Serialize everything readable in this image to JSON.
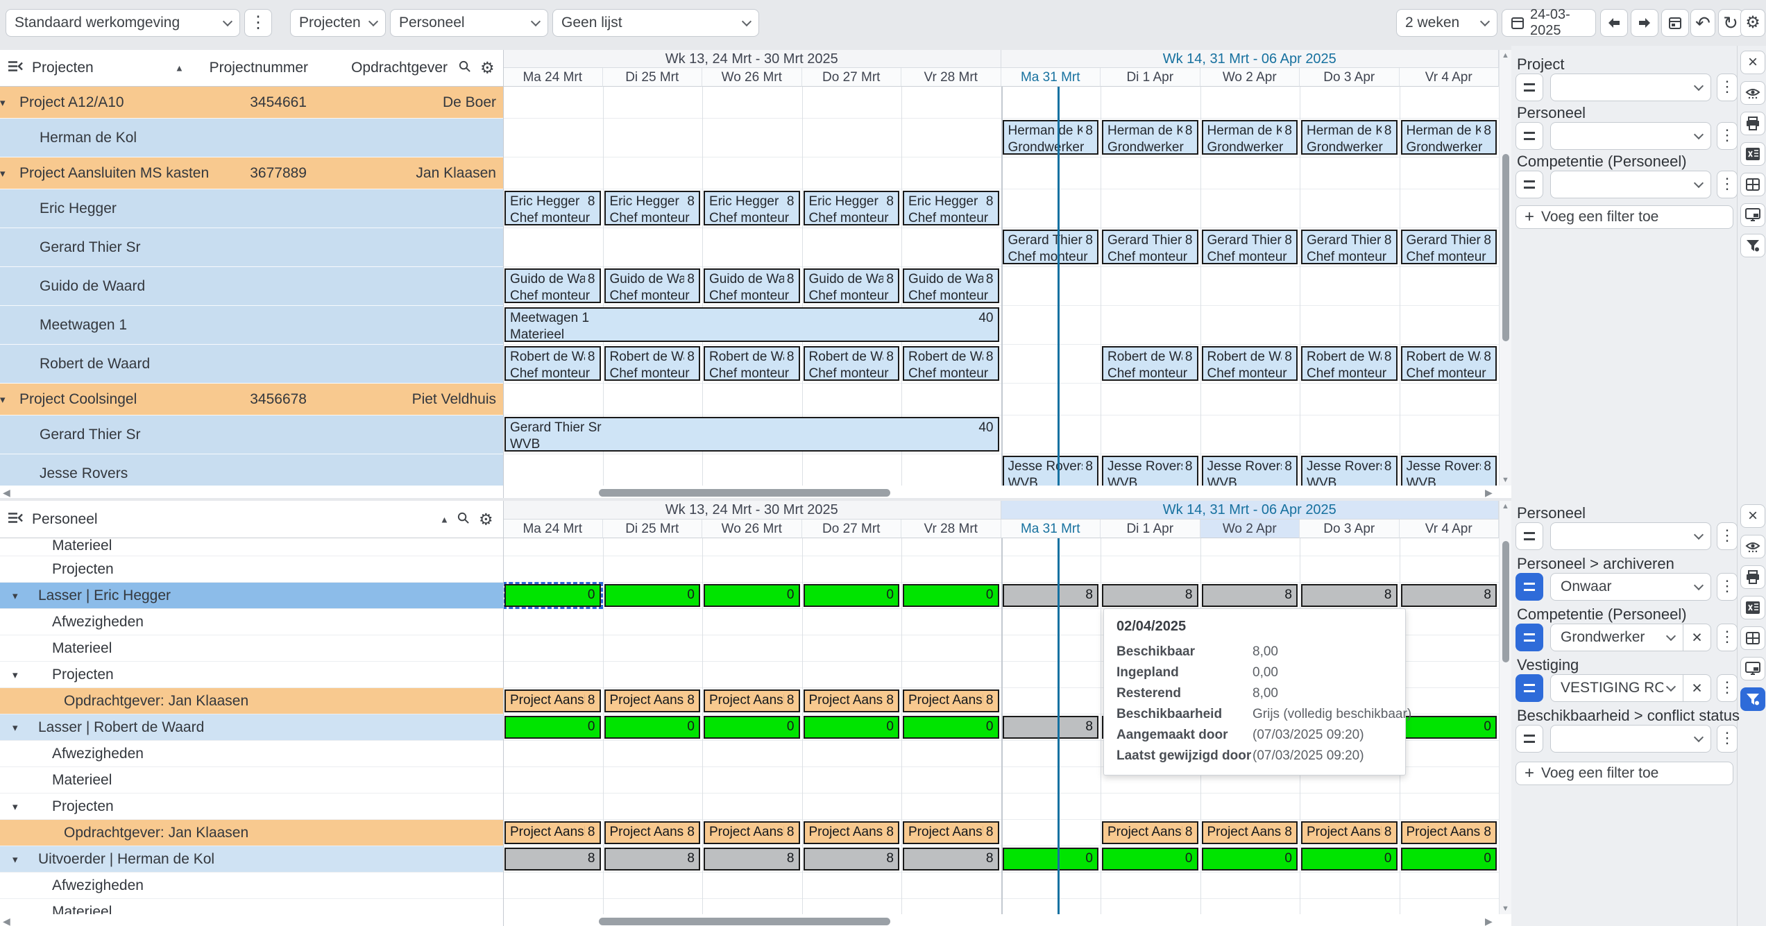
{
  "toolbar": {
    "workspace": "Standaard werkomgeving",
    "view_projects": "Projecten",
    "view_personnel": "Personeel",
    "list": "Geen lijst",
    "period": "2 weken",
    "date": "24-03-2025"
  },
  "timeline": {
    "week1": "Wk 13, 24 Mrt - 30 Mrt 2025",
    "week2": "Wk 14, 31 Mrt - 06 Apr 2025",
    "days_week1": [
      "Ma 24 Mrt",
      "Di 25 Mrt",
      "Wo 26 Mrt",
      "Do 27 Mrt",
      "Vr 28 Mrt"
    ],
    "days_week2": [
      "Ma 31 Mrt",
      "Di 1 Apr",
      "Wo 2 Apr",
      "Do 3 Apr",
      "Vr 4 Apr"
    ],
    "current_day": "Ma 31 Mrt",
    "hovered_day": "Wo 2 Apr"
  },
  "projects_section": {
    "title": "Projecten",
    "columns": {
      "projectnummer": "Projectnummer",
      "opdrachtgever": "Opdrachtgever"
    },
    "rows": [
      {
        "type": "project",
        "label": "Project A12/A10",
        "number": "3454661",
        "client": "De Boer",
        "cells": []
      },
      {
        "type": "resource",
        "label": "Herman de Kol",
        "cells": [
          {
            "cols": "5-9",
            "kind": "plan",
            "name": "Herman de Kol",
            "hours": "8",
            "role": "Grondwerker"
          }
        ]
      },
      {
        "type": "project",
        "label": "Project Aansluiten MS kasten",
        "number": "3677889",
        "client": "Jan Klaasen",
        "cells": []
      },
      {
        "type": "resource",
        "label": "Eric Hegger",
        "cells": [
          {
            "cols": "0-4",
            "kind": "plan",
            "name": "Eric Hegger",
            "hours": "8",
            "role": "Chef monteur"
          }
        ]
      },
      {
        "type": "resource",
        "label": "Gerard Thier Sr",
        "cells": [
          {
            "cols": "5-9",
            "kind": "plan",
            "name": "Gerard Thier Sr",
            "hours": "8",
            "role": "Chef monteur"
          }
        ]
      },
      {
        "type": "resource",
        "label": "Guido de Waard",
        "cells": [
          {
            "cols": "0-4",
            "kind": "plan",
            "name": "Guido de Waard",
            "hours": "8",
            "role": "Chef monteur"
          }
        ]
      },
      {
        "type": "resource",
        "label": "Meetwagen 1",
        "cells": [
          {
            "cols": "0-4",
            "kind": "bar",
            "name": "Meetwagen 1",
            "role": "Materieel",
            "value": "40"
          }
        ]
      },
      {
        "type": "resource",
        "label": "Robert de Waard",
        "cells": [
          {
            "cols": "0-4",
            "kind": "plan",
            "name": "Robert de Waard",
            "hours": "8",
            "role": "Chef monteur"
          },
          {
            "cols": "6-9",
            "kind": "plan",
            "name": "Robert de Waard",
            "hours": "8",
            "role": "Chef monteur"
          }
        ]
      },
      {
        "type": "project",
        "label": "Project Coolsingel",
        "number": "3456678",
        "client": "Piet Veldhuis",
        "cells": []
      },
      {
        "type": "resource",
        "label": "Gerard Thier Sr",
        "cells": [
          {
            "cols": "0-4",
            "kind": "bar",
            "name": "Gerard Thier Sr",
            "role": "WVB",
            "value": "40"
          }
        ]
      },
      {
        "type": "resource",
        "label": "Jesse Rovers",
        "cells": [
          {
            "cols": "5-9",
            "kind": "plan",
            "name": "Jesse Rovers",
            "hours": "8",
            "role": "WVB"
          }
        ]
      }
    ]
  },
  "personnel_section": {
    "title": "Personeel",
    "rows": [
      {
        "label": "Materieel",
        "indent": 2,
        "clipped": true,
        "cells": []
      },
      {
        "label": "Projecten",
        "indent": 2,
        "cells": []
      },
      {
        "label": "Lasser | Eric Hegger",
        "indent": 1,
        "arrow": true,
        "bg": "selected",
        "cells": [
          {
            "cols": "0",
            "kind": "avail",
            "color": "green",
            "value": "0",
            "selected": true
          },
          {
            "cols": "1-4",
            "kind": "avail",
            "color": "green",
            "value": "0"
          },
          {
            "cols": "5-9",
            "kind": "avail",
            "color": "gray",
            "value": "8"
          }
        ]
      },
      {
        "label": "Afwezigheden",
        "indent": 2,
        "cells": []
      },
      {
        "label": "Materieel",
        "indent": 2,
        "cells": []
      },
      {
        "label": "Projecten",
        "indent": 2,
        "arrow": true,
        "cells": []
      },
      {
        "label": "Opdrachtgever: Jan Klaasen",
        "indent": 3,
        "bg": "orange",
        "cells": [
          {
            "cols": "0-4",
            "kind": "proj",
            "name": "Project Aansluiten MS kasten",
            "hours": "8"
          }
        ]
      },
      {
        "label": "Lasser | Robert de Waard",
        "indent": 1,
        "arrow": true,
        "bg": "blue",
        "cells": [
          {
            "cols": "0-4",
            "kind": "avail",
            "color": "green",
            "value": "0"
          },
          {
            "cols": "5",
            "kind": "avail",
            "color": "gray",
            "value": "8"
          },
          {
            "cols": "6-9",
            "kind": "avail",
            "color": "green",
            "value": "0"
          }
        ]
      },
      {
        "label": "Afwezigheden",
        "indent": 2,
        "cells": []
      },
      {
        "label": "Materieel",
        "indent": 2,
        "cells": []
      },
      {
        "label": "Projecten",
        "indent": 2,
        "arrow": true,
        "cells": []
      },
      {
        "label": "Opdrachtgever: Jan Klaasen",
        "indent": 3,
        "bg": "orange",
        "cells": [
          {
            "cols": "0-4",
            "kind": "proj",
            "name": "Project Aansluiten MS kasten",
            "hours": "8"
          },
          {
            "cols": "6-9",
            "kind": "proj",
            "name": "Project Aansluiten MS kasten",
            "hours": "8"
          }
        ]
      },
      {
        "label": "Uitvoerder | Herman de Kol",
        "indent": 1,
        "arrow": true,
        "bg": "blue",
        "cells": [
          {
            "cols": "0-4",
            "kind": "avail",
            "color": "gray",
            "value": "8"
          },
          {
            "cols": "5-9",
            "kind": "avail",
            "color": "green",
            "value": "0"
          }
        ]
      },
      {
        "label": "Afwezigheden",
        "indent": 2,
        "cells": []
      },
      {
        "label": "Materieel",
        "indent": 2,
        "cells": []
      }
    ]
  },
  "tooltip": {
    "date": "02/04/2025",
    "rows": [
      {
        "label": "Beschikbaar",
        "value": "8,00"
      },
      {
        "label": "Ingepland",
        "value": "0,00"
      },
      {
        "label": "Resterend",
        "value": "8,00"
      },
      {
        "label": "Beschikbaarheid",
        "value": "Grijs (volledig beschikbaar)"
      },
      {
        "label": "Aangemaakt door",
        "value": "(07/03/2025 09:20)"
      },
      {
        "label": "Laatst gewijzigd door",
        "value": "(07/03/2025 09:20)"
      }
    ]
  },
  "filter_panel_top": {
    "add_label": "Voeg een filter toe",
    "groups": [
      {
        "label": "Project",
        "value": ""
      },
      {
        "label": "Personeel",
        "value": ""
      },
      {
        "label": "Competentie (Personeel)",
        "value": ""
      }
    ]
  },
  "filter_panel_bottom": {
    "add_label": "Voeg een filter toe",
    "groups": [
      {
        "label": "Personeel",
        "value": ""
      },
      {
        "label": "Personeel > archiveren",
        "value": "Onwaar",
        "active": true
      },
      {
        "label": "Competentie (Personeel)",
        "value": "Grondwerker",
        "active": true,
        "clearable": true
      },
      {
        "label": "Vestiging",
        "value": "VESTIGING ROTT…",
        "active": true,
        "clearable": true
      },
      {
        "label": "Beschikbaarheid > conflict status",
        "value": ""
      }
    ]
  },
  "icon_rail": {
    "icons": [
      "close",
      "eye",
      "print",
      "excel",
      "table",
      "monitor",
      "filter"
    ],
    "bottom_active": "filter"
  },
  "colors": {
    "accent_blue": "#2e6bd9",
    "available_green": "#00e400",
    "occupied_gray": "#bdbfc1",
    "project_orange": "#f8c98f",
    "resource_blue": "#c8ddf0",
    "selected_row_blue": "#8cbce9",
    "current_day_blue": "#17719f",
    "now_line": "#1571a1"
  }
}
